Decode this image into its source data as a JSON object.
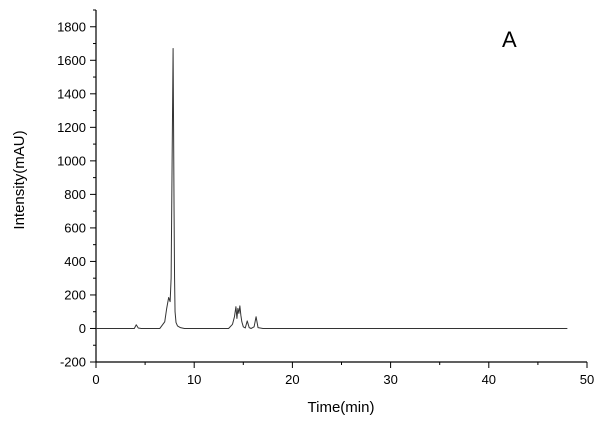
{
  "chart_data": {
    "type": "line",
    "title": "",
    "panel_label": "A",
    "xlabel": "Time(min)",
    "ylabel": "Intensity(mAU)",
    "xlim": [
      0,
      50
    ],
    "ylim": [
      -200,
      1900
    ],
    "x_ticks": [
      0,
      10,
      20,
      30,
      40,
      50
    ],
    "y_ticks": [
      -200,
      0,
      200,
      400,
      600,
      800,
      1000,
      1200,
      1400,
      1600,
      1800
    ],
    "grid": false,
    "line_color": "#333333",
    "series": [
      {
        "x": [
          0,
          3.9,
          4.1,
          4.3,
          4.6,
          6.5,
          7.0,
          7.2,
          7.4,
          7.55,
          7.65,
          7.75,
          7.85,
          7.9,
          7.95,
          8.0,
          8.05,
          8.15,
          8.3,
          8.6,
          9.0,
          13.5,
          13.9,
          14.1,
          14.25,
          14.35,
          14.45,
          14.55,
          14.65,
          14.75,
          14.85,
          15.0,
          15.2,
          15.4,
          15.6,
          15.8,
          16.1,
          16.3,
          16.5,
          17.0,
          20,
          25,
          30,
          35,
          40,
          45,
          48
        ],
        "y": [
          0,
          0,
          22,
          3,
          0,
          0,
          40,
          120,
          185,
          160,
          300,
          1000,
          1670,
          1200,
          700,
          300,
          100,
          35,
          15,
          5,
          0,
          0,
          25,
          70,
          130,
          60,
          120,
          90,
          135,
          80,
          40,
          10,
          3,
          45,
          5,
          0,
          10,
          70,
          5,
          0,
          0,
          0,
          0,
          0,
          0,
          0,
          0
        ]
      }
    ]
  }
}
